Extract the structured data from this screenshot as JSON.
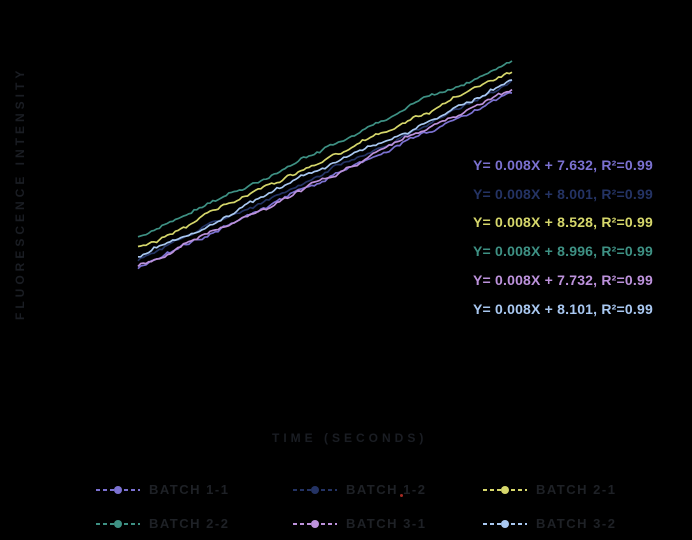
{
  "labels": {
    "y_axis": "FLUORESCENCE INTENSITY",
    "x_axis": "TIME (SECONDS)"
  },
  "colors": {
    "background": "#000000",
    "axis_label": "#1a1d23",
    "legend_label": "#1e2126",
    "artifact_dot": "#a42a22"
  },
  "chart_data": {
    "type": "line",
    "title": "",
    "xlabel": "TIME (SECONDS)",
    "ylabel": "FLUORESCENCE INTENSITY",
    "grid": false,
    "axis_ticks_visible": false,
    "legend_position": "bottom",
    "x_domain_estimate": [
      0,
      1000
    ],
    "series": [
      {
        "name": "BATCH 1-1",
        "color": "#7B71D1",
        "slope": 0.008,
        "intercept": 7.632,
        "r_squared": 0.99,
        "equation": "Y= 0.008X + 7.632, R²=0.99"
      },
      {
        "name": "BATCH 1-2",
        "color": "#243364",
        "slope": 0.008,
        "intercept": 8.001,
        "r_squared": 0.99,
        "equation": "Y= 0.008X + 8.001, R²=0.99"
      },
      {
        "name": "BATCH 2-1",
        "color": "#D6D76B",
        "slope": 0.008,
        "intercept": 8.528,
        "r_squared": 0.99,
        "equation": "Y= 0.008X + 8.528, R²=0.99"
      },
      {
        "name": "BATCH 2-2",
        "color": "#3E9184",
        "slope": 0.008,
        "intercept": 8.996,
        "r_squared": 0.99,
        "equation": "Y= 0.008X + 8.996, R²=0.99"
      },
      {
        "name": "BATCH 3-1",
        "color": "#BD92DC",
        "slope": 0.008,
        "intercept": 7.732,
        "r_squared": 0.99,
        "equation": "Y= 0.008X + 7.732, R²=0.99"
      },
      {
        "name": "BATCH 3-2",
        "color": "#A9C8F1",
        "slope": 0.008,
        "intercept": 8.101,
        "r_squared": 0.99,
        "equation": "Y= 0.008X + 8.101, R²=0.99"
      }
    ]
  }
}
